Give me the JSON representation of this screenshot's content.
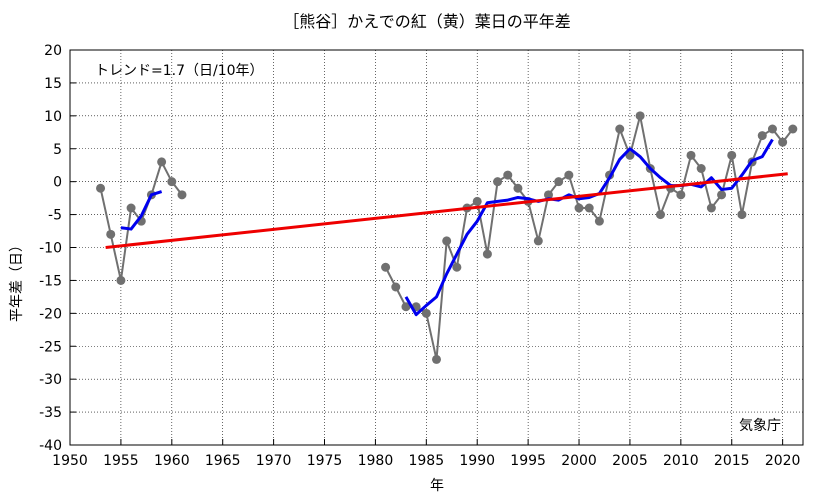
{
  "chart_data": {
    "type": "line",
    "title": "［熊谷］かえでの紅（黄）葉日の平年差",
    "xlabel": "年",
    "ylabel": "平年差（日）",
    "xlim": [
      1950,
      2022
    ],
    "ylim": [
      -40,
      20
    ],
    "xticks": [
      1950,
      1955,
      1960,
      1965,
      1970,
      1975,
      1980,
      1985,
      1990,
      1995,
      2000,
      2005,
      2010,
      2015,
      2020
    ],
    "yticks": [
      20,
      15,
      10,
      5,
      0,
      -5,
      -10,
      -15,
      -20,
      -25,
      -30,
      -35,
      -40
    ],
    "grid": true,
    "trend_label": "トレンド=1.7（日/10年）",
    "source_label": "気象庁",
    "series": [
      {
        "color": "#707070",
        "marker": "circle",
        "segments": [
          [
            [
              1953,
              -1
            ],
            [
              1954,
              -8
            ],
            [
              1955,
              -15
            ],
            [
              1956,
              -4
            ],
            [
              1957,
              -6
            ],
            [
              1958,
              -2
            ],
            [
              1959,
              3
            ],
            [
              1960,
              0
            ],
            [
              1961,
              -2
            ]
          ],
          [
            [
              1981,
              -13
            ],
            [
              1982,
              -16
            ],
            [
              1983,
              -19
            ],
            [
              1984,
              -19
            ],
            [
              1985,
              -20
            ],
            [
              1986,
              -27
            ],
            [
              1987,
              -9
            ],
            [
              1988,
              -13
            ],
            [
              1989,
              -4
            ],
            [
              1990,
              -3
            ],
            [
              1991,
              -11
            ],
            [
              1992,
              0
            ],
            [
              1993,
              1
            ],
            [
              1994,
              -1
            ],
            [
              1995,
              -3
            ],
            [
              1996,
              -9
            ],
            [
              1997,
              -2
            ],
            [
              1998,
              0
            ],
            [
              1999,
              1
            ],
            [
              2000,
              -4
            ],
            [
              2001,
              -4
            ],
            [
              2002,
              -6
            ],
            [
              2003,
              1
            ],
            [
              2004,
              8
            ],
            [
              2005,
              4
            ],
            [
              2006,
              10
            ],
            [
              2007,
              2
            ],
            [
              2008,
              -5
            ],
            [
              2009,
              -1
            ],
            [
              2010,
              -2
            ],
            [
              2011,
              4
            ],
            [
              2012,
              2
            ],
            [
              2013,
              -4
            ],
            [
              2014,
              -2
            ],
            [
              2015,
              4
            ],
            [
              2016,
              -5
            ],
            [
              2017,
              3
            ],
            [
              2018,
              7
            ],
            [
              2019,
              8
            ],
            [
              2020,
              6
            ],
            [
              2021,
              8
            ]
          ]
        ]
      },
      {
        "color": "#0000ee",
        "marker": "none",
        "segments": [
          [
            [
              1955,
              -7
            ],
            [
              1956,
              -7.2
            ],
            [
              1957,
              -5.2
            ],
            [
              1958,
              -2
            ],
            [
              1959,
              -1.5
            ]
          ],
          [
            [
              1983,
              -17.5
            ],
            [
              1984,
              -20.2
            ],
            [
              1985,
              -18.8
            ],
            [
              1986,
              -17.5
            ],
            [
              1987,
              -14
            ],
            [
              1988,
              -11
            ],
            [
              1989,
              -8
            ],
            [
              1990,
              -6
            ],
            [
              1991,
              -3.2
            ],
            [
              1992,
              -3
            ],
            [
              1993,
              -2.8
            ],
            [
              1994,
              -2.4
            ],
            [
              1995,
              -2.6
            ],
            [
              1996,
              -3
            ],
            [
              1997,
              -2.6
            ],
            [
              1998,
              -2.8
            ],
            [
              1999,
              -2
            ],
            [
              2000,
              -2.6
            ],
            [
              2001,
              -2.4
            ],
            [
              2002,
              -1.8
            ],
            [
              2003,
              0.6
            ],
            [
              2004,
              3.4
            ],
            [
              2005,
              5
            ],
            [
              2006,
              3.8
            ],
            [
              2007,
              2
            ],
            [
              2008,
              0.6
            ],
            [
              2009,
              -0.6
            ],
            [
              2010,
              -0.6
            ],
            [
              2011,
              -0.4
            ],
            [
              2012,
              -0.8
            ],
            [
              2013,
              0.6
            ],
            [
              2014,
              -1.2
            ],
            [
              2015,
              -1
            ],
            [
              2016,
              1
            ],
            [
              2017,
              3.2
            ],
            [
              2018,
              3.8
            ],
            [
              2019,
              6.4
            ]
          ]
        ]
      },
      {
        "color": "#ee0000",
        "marker": "none",
        "segments": [
          [
            [
              1953.5,
              -10
            ],
            [
              2020.5,
              1.2
            ]
          ]
        ]
      }
    ]
  }
}
